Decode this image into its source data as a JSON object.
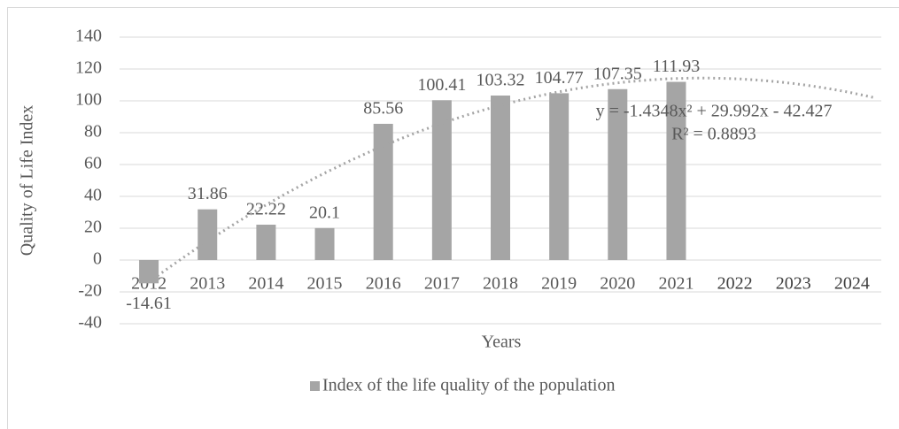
{
  "chart_data": {
    "type": "bar",
    "categories": [
      "2012",
      "2013",
      "2014",
      "2015",
      "2016",
      "2017",
      "2018",
      "2019",
      "2020",
      "2021",
      "2022",
      "2023",
      "2024"
    ],
    "series": [
      {
        "name": "Index of the life quality of the population",
        "color": "#a5a5a5",
        "values": [
          -14.61,
          31.86,
          22.22,
          20.1,
          85.56,
          100.41,
          103.32,
          104.77,
          107.35,
          111.93,
          null,
          null,
          null
        ]
      }
    ],
    "x_label": "Years",
    "y_label": "Quality of Life Index",
    "ylim": [
      -40,
      140
    ],
    "yticks": [
      -40,
      -20,
      0,
      20,
      40,
      60,
      80,
      100,
      120,
      140
    ],
    "grid": true,
    "legend": "bottom",
    "trendline": {
      "type": "polynomial",
      "coefficients": [
        -1.4348,
        29.992,
        -42.427
      ],
      "equation": "y = -1.4348x² + 29.992x - 42.427",
      "r_squared": "R² = 0.8893",
      "color": "#a5a5a5"
    }
  }
}
